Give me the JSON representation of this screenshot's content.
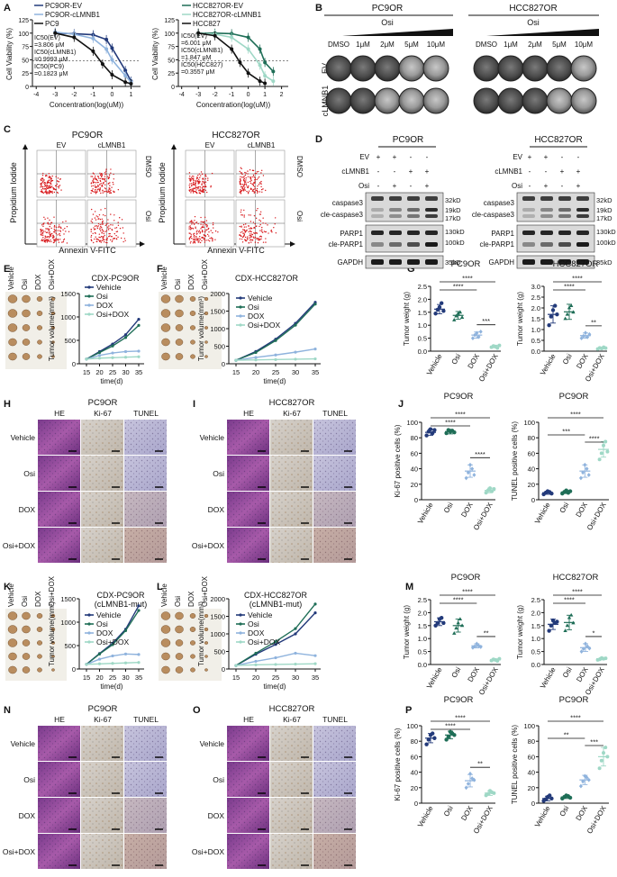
{
  "panels": {
    "A": "A",
    "B": "B",
    "C": "C",
    "D": "D",
    "E": "E",
    "F": "F",
    "G": "G",
    "H": "H",
    "I": "I",
    "J": "J",
    "K": "K",
    "L": "L",
    "M": "M",
    "N": "N",
    "O": "O",
    "P": "P"
  },
  "common": {
    "vehicle": "Vehicle",
    "osi": "Osi",
    "dox": "DOX",
    "osidox": "Osi+DOX",
    "tumor_volume": "Tumor volume(mm³)",
    "time": "time(d)",
    "tumor_weight": "Tumor weight (g)",
    "he": "HE",
    "ki67": "Ki-67",
    "tunel": "TUNEL",
    "ki67_pos": "Ki-67 positive cells (%)",
    "tunel_pos": "TUNEL positive cells (%)",
    "pc9or": "PC9OR",
    "hcc827or": "HCC827OR",
    "ev": "EV",
    "clmnb1": "cLMNB1",
    "dmso": "DMSO",
    "pi": "Propidium Iodide",
    "annexin": "Annexin V-FITC",
    "cell_viability": "Cell Viability (%)",
    "concentration": "Concentration(log(uM))"
  },
  "panelA": {
    "left": {
      "legend": [
        "PC9OR-EV",
        "PC9OR-cLMNB1",
        "PC9"
      ],
      "ic50": [
        "IC50(EV)",
        "=3.806 μM",
        "IC50(cLMNB1)",
        "=0.9993 μM",
        "IC50(PC9)",
        "=0.1823 μM"
      ],
      "xticks": [
        "-4",
        "-3",
        "-2",
        "-1",
        "0",
        "1"
      ],
      "yticks": [
        "0",
        "25",
        "50",
        "75",
        "100",
        "125"
      ]
    },
    "right": {
      "legend": [
        "HCC827OR-EV",
        "HCC827OR-cLMNB1",
        "HCC827"
      ],
      "ic50": [
        "IC50(EV)",
        "=6.001 μM",
        "IC50(cLMNB1)",
        "=1.847 μM",
        "IC50(HCC827)",
        "=0.3557 μM"
      ],
      "xticks": [
        "-4",
        "-3",
        "-2",
        "-1",
        "0",
        "1",
        "2"
      ],
      "yticks": [
        "0",
        "25",
        "50",
        "75",
        "100",
        "125"
      ]
    }
  },
  "panelB": {
    "doses": [
      "DMSO",
      "1μM",
      "2μM",
      "5μM",
      "10μM"
    ]
  },
  "panelD": {
    "pm": [
      "+",
      "+",
      "-",
      "-"
    ],
    "clm": [
      "-",
      "-",
      "+",
      "+"
    ],
    "osi": [
      "-",
      "+",
      "-",
      "+"
    ],
    "rows_left": [
      "caspase3",
      "cle-caspase3",
      "PARP1",
      "cle-PARP1",
      "GAPDH"
    ],
    "kd": [
      "32kD",
      "19kD",
      "17kD",
      "130kD",
      "100kD",
      "35kD"
    ]
  },
  "titles": {
    "cdx_pc9or": "CDX-PC9OR",
    "cdx_hcc827or": "CDX-HCC827OR",
    "cdx_pc9or_mut1": "CDX-PC9OR",
    "cdx_hcc827or_mut1": "CDX-HCC827OR",
    "mut": "(cLMNB1-mut)"
  },
  "growth_xticks": [
    "15",
    "20",
    "25",
    "30",
    "35"
  ],
  "sig": {
    "s4": "****",
    "s3": "***",
    "s2": "**",
    "s1": "*"
  },
  "chart_data": [
    {
      "id": "A-left",
      "type": "line",
      "title": "",
      "xlabel": "Concentration(log(uM))",
      "ylabel": "Cell Viability (%)",
      "xlim": [
        -4,
        1.5
      ],
      "ylim": [
        0,
        125
      ],
      "series": [
        {
          "name": "PC9OR-EV",
          "color": "#233a7a",
          "x": [
            -3,
            -2,
            -1,
            -0.3,
            0,
            0.7,
            1
          ],
          "y": [
            100,
            99,
            97,
            88,
            72,
            30,
            10
          ]
        },
        {
          "name": "PC9OR-cLMNB1",
          "color": "#8fb3dd",
          "x": [
            -3,
            -2,
            -1,
            -0.3,
            0,
            0.7,
            1
          ],
          "y": [
            102,
            98,
            90,
            70,
            50,
            20,
            8
          ]
        },
        {
          "name": "PC9",
          "color": "#111111",
          "x": [
            -3,
            -2,
            -1,
            -0.5,
            0,
            0.7,
            1
          ],
          "y": [
            100,
            92,
            66,
            42,
            22,
            8,
            5
          ]
        }
      ]
    },
    {
      "id": "A-right",
      "type": "line",
      "title": "",
      "xlabel": "Concentration(log(uM))",
      "ylabel": "Cell Viability (%)",
      "xlim": [
        -4,
        2
      ],
      "ylim": [
        0,
        125
      ],
      "series": [
        {
          "name": "HCC827OR-EV",
          "color": "#1f6e57",
          "x": [
            -3,
            -2,
            -1,
            0,
            0.7,
            1,
            1.5
          ],
          "y": [
            100,
            100,
            99,
            92,
            70,
            45,
            28
          ]
        },
        {
          "name": "HCC827OR-cLMNB1",
          "color": "#9fd8c6",
          "x": [
            -3,
            -2,
            -1,
            0,
            0.7,
            1,
            1.5
          ],
          "y": [
            100,
            98,
            92,
            70,
            40,
            20,
            10
          ]
        },
        {
          "name": "HCC827",
          "color": "#111111",
          "x": [
            -3,
            -2,
            -1,
            -0.5,
            0,
            0.7,
            1
          ],
          "y": [
            100,
            95,
            70,
            45,
            25,
            10,
            6
          ]
        }
      ]
    },
    {
      "id": "E",
      "type": "line",
      "title": "CDX-PC9OR",
      "xlabel": "time(d)",
      "ylabel": "Tumor volume(mm³)",
      "ylim": [
        0,
        1500
      ],
      "x": [
        15,
        20,
        25,
        30,
        35
      ],
      "series": [
        {
          "name": "Vehicle",
          "color": "#233a7a",
          "values": [
            100,
            260,
            420,
            620,
            950
          ]
        },
        {
          "name": "Osi",
          "color": "#1f6e57",
          "values": [
            100,
            240,
            380,
            560,
            820
          ]
        },
        {
          "name": "DOX",
          "color": "#8fb3dd",
          "values": [
            100,
            180,
            230,
            260,
            270
          ]
        },
        {
          "name": "Osi+DOX",
          "color": "#9fd8c6",
          "values": [
            100,
            120,
            130,
            140,
            150
          ]
        }
      ]
    },
    {
      "id": "F",
      "type": "line",
      "title": "CDX-HCC827OR",
      "xlabel": "time(d)",
      "ylabel": "Tumor volume(mm³)",
      "ylim": [
        0,
        2000
      ],
      "x": [
        15,
        20,
        25,
        30,
        35
      ],
      "series": [
        {
          "name": "Vehicle",
          "color": "#233a7a",
          "values": [
            100,
            350,
            700,
            1150,
            1750
          ]
        },
        {
          "name": "Osi",
          "color": "#1f6e57",
          "values": [
            100,
            320,
            660,
            1100,
            1700
          ]
        },
        {
          "name": "DOX",
          "color": "#8fb3dd",
          "values": [
            100,
            180,
            250,
            330,
            420
          ]
        },
        {
          "name": "Osi+DOX",
          "color": "#9fd8c6",
          "values": [
            100,
            110,
            120,
            130,
            140
          ]
        }
      ]
    },
    {
      "id": "K",
      "type": "line",
      "title": "CDX-PC9OR (cLMNB1-mut)",
      "xlabel": "time(d)",
      "ylabel": "Tumor volume(mm³)",
      "ylim": [
        0,
        1500
      ],
      "x": [
        15,
        20,
        25,
        30,
        35
      ],
      "series": [
        {
          "name": "Vehicle",
          "color": "#233a7a",
          "values": [
            100,
            330,
            550,
            850,
            1350
          ]
        },
        {
          "name": "Osi",
          "color": "#1f6e57",
          "values": [
            100,
            320,
            520,
            820,
            1250
          ]
        },
        {
          "name": "DOX",
          "color": "#8fb3dd",
          "values": [
            100,
            210,
            280,
            320,
            310
          ]
        },
        {
          "name": "Osi+DOX",
          "color": "#9fd8c6",
          "values": [
            100,
            110,
            120,
            130,
            140
          ]
        }
      ]
    },
    {
      "id": "L",
      "type": "line",
      "title": "CDX-HCC827OR (cLMNB1-mut)",
      "xlabel": "time(d)",
      "ylabel": "Tumor volume(mm³)",
      "ylim": [
        0,
        2000
      ],
      "x": [
        15,
        20,
        25,
        30,
        35
      ],
      "series": [
        {
          "name": "Vehicle",
          "color": "#233a7a",
          "values": [
            100,
            420,
            700,
            1000,
            1600
          ]
        },
        {
          "name": "Osi",
          "color": "#1f6e57",
          "values": [
            100,
            450,
            780,
            1150,
            1850
          ]
        },
        {
          "name": "DOX",
          "color": "#8fb3dd",
          "values": [
            100,
            220,
            320,
            450,
            380
          ]
        },
        {
          "name": "Osi+DOX",
          "color": "#9fd8c6",
          "values": [
            100,
            120,
            130,
            140,
            150
          ]
        }
      ]
    },
    {
      "id": "G-left",
      "type": "scatter",
      "title": "PC9OR",
      "ylabel": "Tumor weight (g)",
      "ylim": [
        0,
        2.5
      ],
      "categories": [
        "Vehicle",
        "Osi",
        "DOX",
        "Osi+DOX"
      ],
      "means": [
        1.62,
        1.38,
        0.62,
        0.18
      ],
      "sd": [
        0.18,
        0.15,
        0.12,
        0.05
      ],
      "points": [
        [
          1.45,
          1.6,
          1.7,
          1.85,
          1.55
        ],
        [
          1.2,
          1.35,
          1.45,
          1.5,
          1.3
        ],
        [
          0.5,
          0.62,
          0.7,
          0.55,
          0.75
        ],
        [
          0.15,
          0.2,
          0.18,
          0.12,
          0.22
        ]
      ]
    },
    {
      "id": "G-right",
      "type": "scatter",
      "title": "HCC827OR",
      "ylabel": "Tumor weight (g)",
      "ylim": [
        0,
        3
      ],
      "categories": [
        "Vehicle",
        "Osi",
        "DOX",
        "Osi+DOX"
      ],
      "means": [
        1.7,
        1.82,
        0.72,
        0.14
      ],
      "sd": [
        0.4,
        0.35,
        0.12,
        0.04
      ],
      "points": [
        [
          1.2,
          1.6,
          1.9,
          2.1,
          1.7
        ],
        [
          1.5,
          1.7,
          2.0,
          2.1,
          1.8
        ],
        [
          0.6,
          0.7,
          0.85,
          0.65,
          0.78
        ],
        [
          0.1,
          0.15,
          0.12,
          0.18,
          0.14
        ]
      ]
    },
    {
      "id": "J-left",
      "type": "scatter",
      "title": "PC9OR",
      "ylabel": "Ki-67 positive cells (%)",
      "ylim": [
        0,
        100
      ],
      "categories": [
        "Vehicle",
        "Osi",
        "DOX",
        "Osi+DOX"
      ],
      "means": [
        87,
        88,
        37,
        12
      ],
      "sd": [
        4,
        3,
        8,
        3
      ],
      "points": [
        [
          83,
          88,
          91,
          86,
          90
        ],
        [
          86,
          90,
          88,
          89,
          87
        ],
        [
          28,
          35,
          45,
          40,
          32
        ],
        [
          9,
          12,
          15,
          11,
          14
        ]
      ]
    },
    {
      "id": "J-right",
      "type": "scatter",
      "title": "PC9OR",
      "ylabel": "TUNEL positive cells (%)",
      "ylim": [
        0,
        100
      ],
      "categories": [
        "Vehicle",
        "Osi",
        "DOX",
        "Osi+DOX"
      ],
      "means": [
        9,
        10,
        37,
        65
      ],
      "sd": [
        2,
        2,
        8,
        10
      ],
      "points": [
        [
          7,
          9,
          11,
          10,
          8
        ],
        [
          8,
          10,
          12,
          9,
          11
        ],
        [
          28,
          35,
          45,
          40,
          32
        ],
        [
          52,
          60,
          70,
          75,
          62
        ]
      ]
    },
    {
      "id": "M-left",
      "type": "scatter",
      "title": "PC9OR",
      "ylabel": "Tumor weight (g)",
      "ylim": [
        0,
        2.5
      ],
      "categories": [
        "Vehicle",
        "Osi",
        "DOX",
        "Osi+DOX"
      ],
      "means": [
        1.65,
        1.5,
        0.72,
        0.18
      ],
      "sd": [
        0.15,
        0.25,
        0.08,
        0.04
      ],
      "points": [
        [
          1.5,
          1.6,
          1.75,
          1.8,
          1.6
        ],
        [
          1.2,
          1.4,
          1.6,
          1.75,
          1.5
        ],
        [
          0.65,
          0.7,
          0.8,
          0.72,
          0.68
        ],
        [
          0.15,
          0.2,
          0.18,
          0.14,
          0.22
        ]
      ]
    },
    {
      "id": "M-right",
      "type": "scatter",
      "title": "HCC827OR",
      "ylabel": "Tumor weight (g)",
      "ylim": [
        0,
        2.5
      ],
      "categories": [
        "Vehicle",
        "Osi",
        "DOX",
        "Osi+DOX"
      ],
      "means": [
        1.55,
        1.62,
        0.65,
        0.22
      ],
      "sd": [
        0.2,
        0.28,
        0.15,
        0.04
      ],
      "points": [
        [
          1.3,
          1.5,
          1.7,
          1.6,
          1.65
        ],
        [
          1.3,
          1.5,
          1.8,
          1.9,
          1.6
        ],
        [
          0.5,
          0.6,
          0.8,
          0.7,
          0.62
        ],
        [
          0.18,
          0.2,
          0.25,
          0.22,
          0.24
        ]
      ]
    },
    {
      "id": "P-left",
      "type": "scatter",
      "title": "PC9OR",
      "ylabel": "Ki-67 positive cells (%)",
      "ylim": [
        0,
        100
      ],
      "categories": [
        "Vehicle",
        "Osi",
        "DOX",
        "Osi+DOX"
      ],
      "means": [
        84,
        88,
        29,
        13
      ],
      "sd": [
        6,
        5,
        8,
        3
      ],
      "points": [
        [
          76,
          82,
          88,
          90,
          84
        ],
        [
          82,
          86,
          92,
          90,
          88
        ],
        [
          20,
          25,
          38,
          32,
          30
        ],
        [
          10,
          12,
          16,
          14,
          13
        ]
      ]
    },
    {
      "id": "P-right",
      "type": "scatter",
      "title": "PC9OR",
      "ylabel": "TUNEL positive cells (%)",
      "ylim": [
        0,
        100
      ],
      "categories": [
        "Vehicle",
        "Osi",
        "DOX",
        "Osi+DOX"
      ],
      "means": [
        6,
        8,
        30,
        60
      ],
      "sd": [
        3,
        2,
        6,
        12
      ],
      "points": [
        [
          3,
          5,
          8,
          10,
          6
        ],
        [
          6,
          8,
          10,
          9,
          7
        ],
        [
          22,
          28,
          35,
          33,
          30
        ],
        [
          45,
          55,
          65,
          72,
          60
        ]
      ]
    }
  ]
}
